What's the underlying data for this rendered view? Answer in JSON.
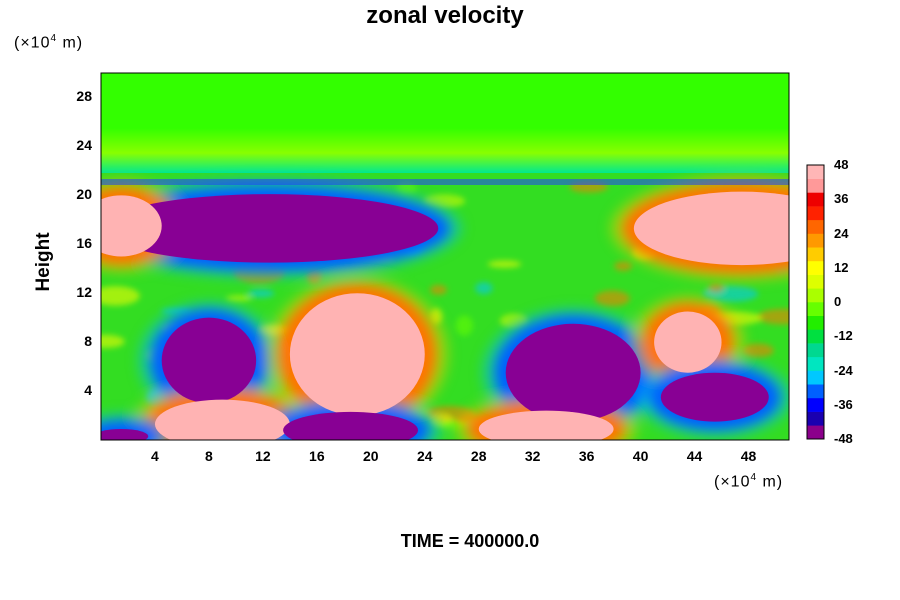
{
  "chart_data": {
    "type": "heatmap",
    "title": "zonal velocity",
    "ylabel": "Height",
    "x_unit": "(×10",
    "x_unit_exp": "4",
    "x_unit_end": " m)",
    "y_unit": "(×10",
    "y_unit_exp": "4",
    "y_unit_end": " m)",
    "xlim": [
      0,
      51
    ],
    "ylim": [
      0,
      30
    ],
    "x_ticks": [
      4,
      8,
      12,
      16,
      20,
      24,
      28,
      32,
      36,
      40,
      44,
      48
    ],
    "y_ticks": [
      4,
      8,
      12,
      16,
      20,
      24,
      28
    ],
    "colorbar": {
      "range": [
        -48,
        48
      ],
      "ticks": [
        48,
        36,
        24,
        12,
        0,
        -12,
        -24,
        -36,
        -48
      ],
      "colors": [
        "#8b008b",
        "#1a00b0",
        "#0000ff",
        "#0060ff",
        "#00c8ff",
        "#00e6c0",
        "#00d890",
        "#00e040",
        "#22ee00",
        "#66ff00",
        "#aaff00",
        "#ddff00",
        "#ffff00",
        "#ffcc00",
        "#ff9900",
        "#ff6600",
        "#ff2200",
        "#ee0000",
        "#ff9999",
        "#ffb6b6"
      ]
    },
    "features": [
      {
        "kind": "jet_min",
        "x": 12.5,
        "y": 17.3,
        "rx": 12.5,
        "ry": 2.8,
        "value": -48
      },
      {
        "kind": "jet_max",
        "x": 47.5,
        "y": 17.3,
        "rx": 8,
        "ry": 3,
        "value": 48
      },
      {
        "kind": "jet_max",
        "x": 1.5,
        "y": 17.5,
        "rx": 3,
        "ry": 2.5,
        "value": 48
      },
      {
        "kind": "jet_min",
        "x": 8,
        "y": 6.5,
        "rx": 3.5,
        "ry": 3.5,
        "value": -48
      },
      {
        "kind": "jet_max",
        "x": 19,
        "y": 7,
        "rx": 5,
        "ry": 5,
        "value": 48
      },
      {
        "kind": "jet_min",
        "x": 35,
        "y": 5.5,
        "rx": 5,
        "ry": 4,
        "value": -48
      },
      {
        "kind": "jet_max",
        "x": 43.5,
        "y": 8,
        "rx": 2.5,
        "ry": 2.5,
        "value": 40
      },
      {
        "kind": "jet_min",
        "x": 45.5,
        "y": 3.5,
        "rx": 4,
        "ry": 2,
        "value": -44
      },
      {
        "kind": "jet_max",
        "x": 9,
        "y": 1.3,
        "rx": 5,
        "ry": 2,
        "value": 48
      },
      {
        "kind": "jet_min",
        "x": 18.5,
        "y": 0.8,
        "rx": 5,
        "ry": 1.5,
        "value": -48
      },
      {
        "kind": "jet_max",
        "x": 33,
        "y": 0.9,
        "rx": 5,
        "ry": 1.5,
        "value": 48
      },
      {
        "kind": "jet_min",
        "x": 1.5,
        "y": 0.3,
        "rx": 2,
        "ry": 0.6,
        "value": -48
      }
    ]
  },
  "footer": "TIME = 400000.0"
}
